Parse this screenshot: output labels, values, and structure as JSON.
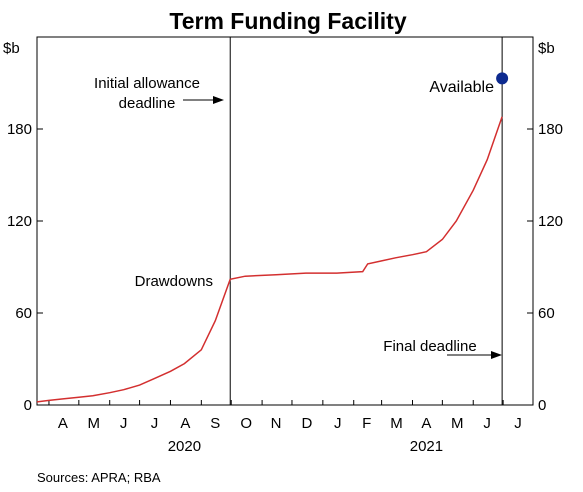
{
  "chart_data": {
    "type": "line",
    "title": "Term Funding Facility",
    "ylabel_left": "$b",
    "ylabel_right": "$b",
    "ylim": [
      0,
      240
    ],
    "yticks": [
      0,
      60,
      120,
      180
    ],
    "xlim": [
      "2020-03-20",
      "2021-07-31"
    ],
    "month_labels": [
      {
        "label": "A",
        "date": "2020-04-15"
      },
      {
        "label": "M",
        "date": "2020-05-16"
      },
      {
        "label": "J",
        "date": "2020-06-15"
      },
      {
        "label": "J",
        "date": "2020-07-16"
      },
      {
        "label": "A",
        "date": "2020-08-16"
      },
      {
        "label": "S",
        "date": "2020-09-15"
      },
      {
        "label": "O",
        "date": "2020-10-16"
      },
      {
        "label": "N",
        "date": "2020-11-15"
      },
      {
        "label": "D",
        "date": "2020-12-16"
      },
      {
        "label": "J",
        "date": "2021-01-16"
      },
      {
        "label": "F",
        "date": "2021-02-14"
      },
      {
        "label": "M",
        "date": "2021-03-16"
      },
      {
        "label": "A",
        "date": "2021-04-15"
      },
      {
        "label": "M",
        "date": "2021-05-16"
      },
      {
        "label": "J",
        "date": "2021-06-15"
      },
      {
        "label": "J",
        "date": "2021-07-16"
      }
    ],
    "year_labels": [
      {
        "label": "2020",
        "date": "2020-08-15"
      },
      {
        "label": "2021",
        "date": "2021-04-15"
      }
    ],
    "vlines": [
      {
        "date": "2020-09-30",
        "label": "Initial allowance deadline"
      },
      {
        "date": "2021-06-30",
        "label": "Final deadline"
      }
    ],
    "series": [
      {
        "name": "Drawdowns",
        "color": "#d32f2f",
        "x": [
          "2020-03-20",
          "2020-04-01",
          "2020-04-15",
          "2020-05-01",
          "2020-05-15",
          "2020-06-01",
          "2020-06-15",
          "2020-07-01",
          "2020-07-15",
          "2020-08-01",
          "2020-08-15",
          "2020-09-01",
          "2020-09-15",
          "2020-09-30",
          "2020-10-15",
          "2020-11-15",
          "2020-12-15",
          "2021-01-15",
          "2021-02-10",
          "2021-02-15",
          "2021-03-01",
          "2021-03-15",
          "2021-04-01",
          "2021-04-15",
          "2021-05-01",
          "2021-05-15",
          "2021-06-01",
          "2021-06-15",
          "2021-06-30"
        ],
        "values": [
          2,
          3,
          4,
          5,
          6,
          8,
          10,
          13,
          17,
          22,
          27,
          36,
          55,
          82,
          84,
          85,
          86,
          86,
          87,
          92,
          94,
          96,
          98,
          100,
          108,
          120,
          140,
          160,
          188
        ]
      }
    ],
    "points": [
      {
        "name": "Available",
        "date": "2021-06-30",
        "value": 213,
        "color": "#0d2a8f"
      }
    ],
    "grid": false,
    "source": "Sources: APRA; RBA"
  }
}
